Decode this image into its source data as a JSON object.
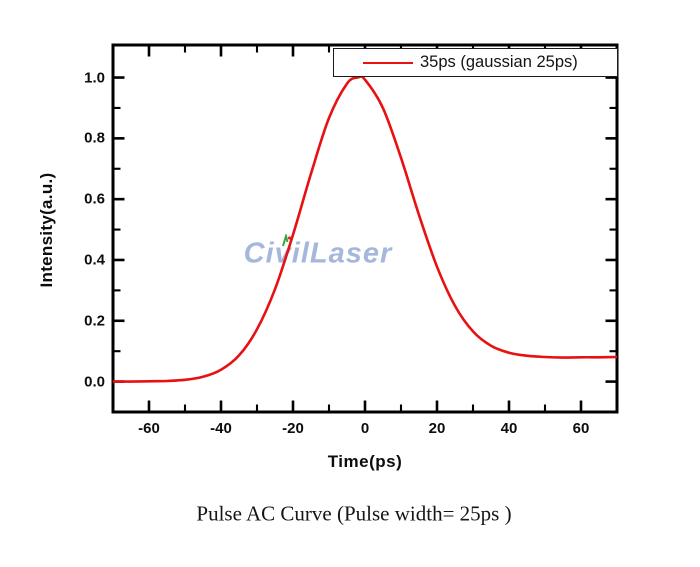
{
  "page": {
    "background": "#ffffff"
  },
  "caption": "Pulse AC Curve (Pulse width= 25ps )",
  "watermark": {
    "text": "CivilLaser",
    "color": "#a5b7da",
    "accent_colors": [
      "#3aa53a",
      "#d93030"
    ]
  },
  "chart_data": {
    "type": "line",
    "title": "",
    "xlabel": "Time(ps)",
    "ylabel": "Intensity(a.u.)",
    "xlim": [
      -70,
      70
    ],
    "ylim": [
      -0.1,
      1.107
    ],
    "grid": false,
    "axis_color": "#000000",
    "x_major_ticks": [
      -60,
      -40,
      -20,
      0,
      20,
      40,
      60
    ],
    "x_minor_ticks": [
      -50,
      -30,
      -10,
      10,
      30,
      50
    ],
    "x_tick_labels": [
      "-60",
      "-40",
      "-20",
      "0",
      "20",
      "40",
      "60"
    ],
    "y_major_ticks": [
      0.0,
      0.2,
      0.4,
      0.6,
      0.8,
      1.0
    ],
    "y_minor_ticks": [
      0.1,
      0.3,
      0.5,
      0.7,
      0.9
    ],
    "y_tick_labels": [
      "0.0",
      "0.2",
      "0.4",
      "0.6",
      "0.8",
      "1.0"
    ],
    "legend": {
      "position": "top-right-inside",
      "entries": [
        {
          "label": "35ps (gaussian 25ps)",
          "color": "#e81010"
        }
      ]
    },
    "series": [
      {
        "name": "35ps (gaussian 25ps)",
        "color": "#e81010",
        "points": [
          [
            -70,
            0.0
          ],
          [
            -65,
            0.0
          ],
          [
            -60,
            0.001
          ],
          [
            -55,
            0.002
          ],
          [
            -50,
            0.006
          ],
          [
            -45,
            0.016
          ],
          [
            -40,
            0.039
          ],
          [
            -35,
            0.086
          ],
          [
            -30,
            0.172
          ],
          [
            -25,
            0.304
          ],
          [
            -20,
            0.483
          ],
          [
            -15,
            0.684
          ],
          [
            -10,
            0.867
          ],
          [
            -5,
            0.98
          ],
          [
            -2,
            1.0
          ],
          [
            0,
            0.993
          ],
          [
            5,
            0.899
          ],
          [
            10,
            0.736
          ],
          [
            15,
            0.548
          ],
          [
            20,
            0.378
          ],
          [
            25,
            0.249
          ],
          [
            30,
            0.165
          ],
          [
            35,
            0.118
          ],
          [
            40,
            0.095
          ],
          [
            45,
            0.085
          ],
          [
            50,
            0.081
          ],
          [
            55,
            0.079
          ],
          [
            60,
            0.08
          ],
          [
            65,
            0.08
          ],
          [
            70,
            0.081
          ]
        ]
      }
    ]
  }
}
